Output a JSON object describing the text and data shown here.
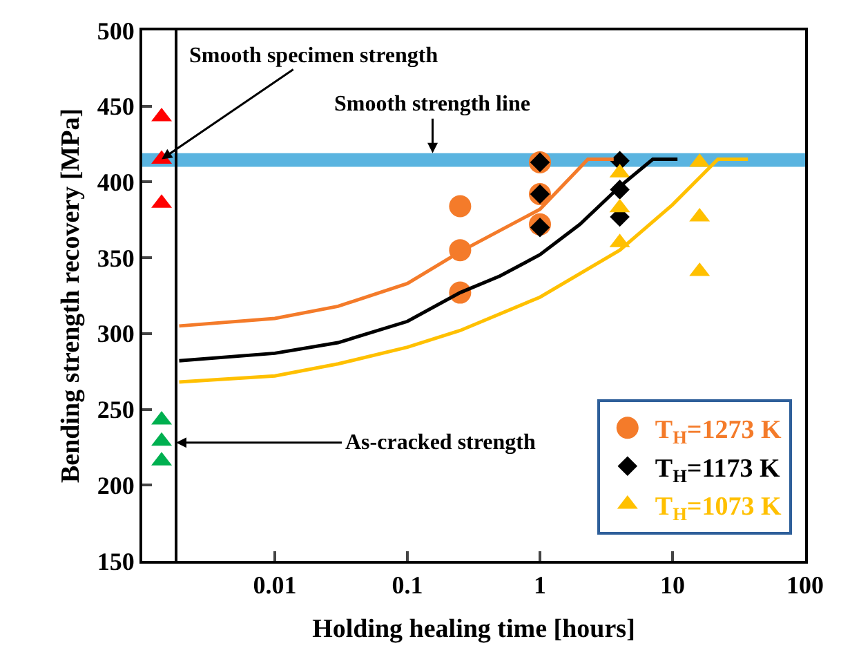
{
  "chart_data": {
    "type": "scatter",
    "xlabel": "Holding healing time [hours]",
    "ylabel": "Bending strength recovery [MPa]",
    "log": "x",
    "xlim": [
      0.001,
      100
    ],
    "xticks": [
      0.01,
      0.1,
      1,
      10,
      100
    ],
    "ylim": [
      150,
      500
    ],
    "yticks": [
      150,
      200,
      250,
      300,
      350,
      400,
      450,
      500
    ],
    "grid": false,
    "legend": "bottom right",
    "series": [
      {
        "name": "T$_{H}$=1273 K",
        "color": "#f47b2a",
        "marker": "circle",
        "x": [
          0.25,
          0.25,
          0.25,
          1,
          1,
          1
        ],
        "values": [
          384,
          355,
          327,
          413,
          392,
          372
        ]
      },
      {
        "name": "T$_{H}$=1173 K",
        "color": "#000000",
        "marker": "diamond",
        "x": [
          1,
          1,
          1,
          4,
          4,
          4
        ],
        "values": [
          413,
          392,
          370,
          414,
          395,
          377
        ]
      },
      {
        "name": "T$_{H}$=1073 K",
        "color": "#ffc000",
        "marker": "triangle",
        "x": [
          4,
          4,
          4,
          16,
          16,
          16
        ],
        "values": [
          406,
          383,
          360,
          413,
          377,
          341
        ]
      },
      {
        "color": "#ff0000",
        "marker": "triangle",
        "x": [
          0.0014,
          0.0014,
          0.0014
        ],
        "values": [
          443,
          415,
          386
        ]
      },
      {
        "color": "#00b050",
        "marker": "triangle",
        "x": [
          0.0014,
          0.0014,
          0.0014
        ],
        "values": [
          243,
          229,
          216
        ]
      },
      {
        "type": "line",
        "color": "#f47b2a",
        "x": [
          0.0019,
          0.01,
          0.03,
          0.1,
          0.25,
          0.5,
          1,
          1.5,
          2.3,
          3.6
        ],
        "values": [
          305,
          310,
          318,
          333,
          354,
          368,
          382,
          398,
          415,
          415
        ]
      },
      {
        "type": "line",
        "color": "#000000",
        "x": [
          0.0019,
          0.01,
          0.03,
          0.1,
          0.25,
          0.5,
          1,
          2,
          4,
          7.1,
          10.9
        ],
        "values": [
          282,
          287,
          294,
          308,
          327,
          338,
          352,
          372,
          397,
          415,
          415
        ]
      },
      {
        "type": "line",
        "color": "#ffc000",
        "x": [
          0.0019,
          0.01,
          0.03,
          0.1,
          0.25,
          1,
          4,
          10,
          22,
          37
        ],
        "values": [
          268,
          272,
          280,
          291,
          302,
          324,
          355,
          385,
          415,
          415
        ]
      }
    ],
    "bands": [
      {
        "axis": "y",
        "from": 410,
        "to": 419,
        "color": "#5ab4e0"
      }
    ],
    "ref_lines": [
      {
        "axis": "x",
        "value": 0.0018,
        "color": "#000000"
      }
    ],
    "annotations": [
      {
        "text": "Smooth specimen strength",
        "x": 0.0014,
        "y": 415
      },
      {
        "text": "Smooth strength line",
        "x": 0.155,
        "y": 419
      },
      {
        "text": "As-cracked strength",
        "x": 0.0018,
        "y": 228
      }
    ]
  }
}
